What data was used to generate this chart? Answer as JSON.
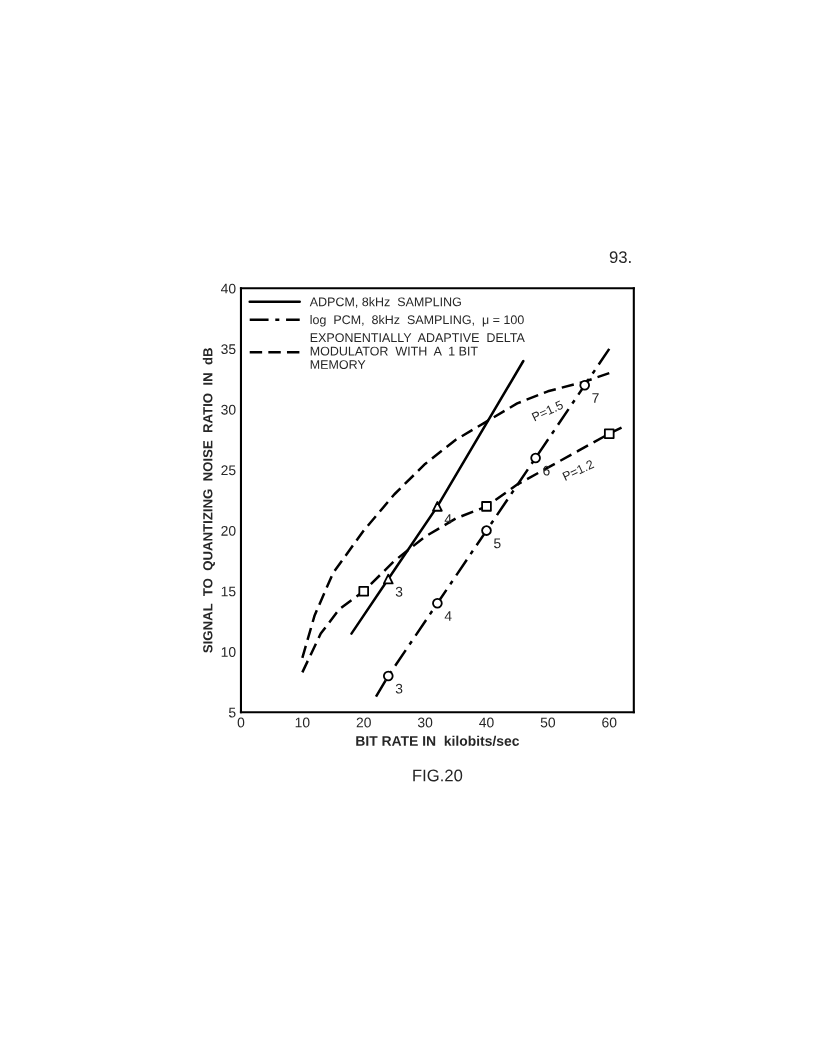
{
  "chart_data": {
    "type": "line",
    "xlabel": "BIT RATE IN  kilobits/sec",
    "ylabel": "SIGNAL  TO  QUANTIZING  NOISE  RATIO  IN  dB",
    "xlim": [
      0,
      64
    ],
    "ylim": [
      5,
      40
    ],
    "xticks": [
      0,
      10,
      20,
      30,
      40,
      50,
      60
    ],
    "yticks": [
      5,
      10,
      15,
      20,
      25,
      30,
      35,
      40
    ],
    "grid": false,
    "legend": "top left",
    "series": [
      {
        "name": "ADPCM, 8kHz  SAMPLING",
        "color": "#000000",
        "line_style": "solid",
        "marker": "none",
        "x": [
          18,
          24,
          32,
          46
        ],
        "values": [
          11.5,
          16,
          22,
          34
        ]
      },
      {
        "name": "log  PCM,  8kHz  SAMPLING,  μ = 100",
        "color": "#000000",
        "line_style": "dashdot",
        "marker": "none",
        "x": [
          22,
          24,
          32,
          40,
          48,
          56,
          60
        ],
        "values": [
          6.3,
          8,
          14,
          20,
          26,
          32,
          35
        ]
      },
      {
        "name": "EXPONENTIALLY  ADAPTIVE  DELTA\nMODULATOR  WITH  A  1 BIT\nMEMORY",
        "color": "#000000",
        "line_style": "dashed",
        "marker": "none",
        "x": [
          10,
          12,
          15,
          20,
          25,
          30,
          35,
          40,
          45,
          50,
          56,
          60
        ],
        "values": [
          9.5,
          13,
          16.5,
          20,
          23,
          25.5,
          27.5,
          29,
          30.5,
          31.5,
          32.3,
          33
        ]
      },
      {
        "color": "#000000",
        "line_style": "dashed",
        "marker": "none",
        "x": [
          10,
          13,
          16,
          20,
          25,
          30,
          35,
          40,
          45,
          50,
          55,
          60,
          62
        ],
        "values": [
          8.3,
          11.5,
          13.5,
          15,
          17.5,
          19.5,
          21,
          22,
          23.8,
          25.2,
          26.6,
          28,
          28.5
        ]
      },
      {
        "type": "scatter",
        "color": "#000000",
        "marker": "triangle",
        "x": [
          24,
          32
        ],
        "values": [
          16,
          22
        ]
      },
      {
        "type": "scatter",
        "color": "#000000",
        "marker": "circle",
        "x": [
          24,
          32,
          40,
          48,
          56
        ],
        "values": [
          8,
          14,
          20,
          26,
          32
        ]
      },
      {
        "type": "scatter",
        "color": "#000000",
        "marker": "square",
        "x": [
          20,
          40,
          60
        ],
        "values": [
          15,
          22,
          28
        ]
      }
    ],
    "annotations": [
      {
        "text": "P=1.5",
        "x": 50,
        "y": 31.5
      },
      {
        "text": "P=1.2",
        "x": 55,
        "y": 26.6
      },
      {
        "text": "3",
        "x": 24,
        "y": 16
      },
      {
        "text": "4",
        "x": 32,
        "y": 22
      },
      {
        "text": "3",
        "x": 24,
        "y": 8
      },
      {
        "text": "4",
        "x": 32,
        "y": 14
      },
      {
        "text": "5",
        "x": 40,
        "y": 20
      },
      {
        "text": "6",
        "x": 48,
        "y": 26
      },
      {
        "text": "7",
        "x": 56,
        "y": 32
      },
      "FIG.20",
      "93."
    ]
  }
}
